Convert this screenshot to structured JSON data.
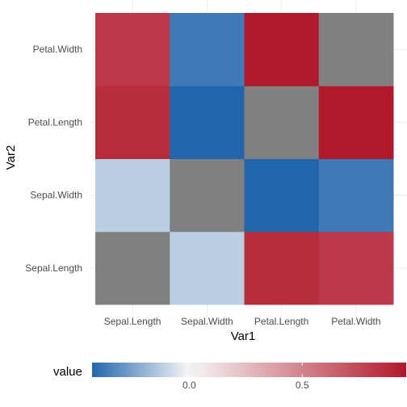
{
  "chart_data": {
    "type": "heatmap",
    "xlabel": "Var1",
    "ylabel": "Var2",
    "x_categories": [
      "Sepal.Length",
      "Sepal.Width",
      "Petal.Length",
      "Petal.Width"
    ],
    "y_categories": [
      "Sepal.Length",
      "Sepal.Width",
      "Petal.Length",
      "Petal.Width"
    ],
    "cells": [
      {
        "x": "Sepal.Length",
        "y": "Sepal.Length",
        "value": null
      },
      {
        "x": "Sepal.Width",
        "y": "Sepal.Length",
        "value": -0.12
      },
      {
        "x": "Petal.Length",
        "y": "Sepal.Length",
        "value": 0.87
      },
      {
        "x": "Petal.Width",
        "y": "Sepal.Length",
        "value": 0.82
      },
      {
        "x": "Sepal.Length",
        "y": "Sepal.Width",
        "value": -0.12
      },
      {
        "x": "Sepal.Width",
        "y": "Sepal.Width",
        "value": null
      },
      {
        "x": "Petal.Length",
        "y": "Sepal.Width",
        "value": -0.43
      },
      {
        "x": "Petal.Width",
        "y": "Sepal.Width",
        "value": -0.37
      },
      {
        "x": "Sepal.Length",
        "y": "Petal.Length",
        "value": 0.87
      },
      {
        "x": "Sepal.Width",
        "y": "Petal.Length",
        "value": -0.43
      },
      {
        "x": "Petal.Length",
        "y": "Petal.Length",
        "value": null
      },
      {
        "x": "Petal.Width",
        "y": "Petal.Length",
        "value": 0.96
      },
      {
        "x": "Sepal.Length",
        "y": "Petal.Width",
        "value": 0.82
      },
      {
        "x": "Sepal.Width",
        "y": "Petal.Width",
        "value": -0.37
      },
      {
        "x": "Petal.Length",
        "y": "Petal.Width",
        "value": 0.96
      },
      {
        "x": "Petal.Width",
        "y": "Petal.Width",
        "value": null
      }
    ],
    "na_color": "#808080",
    "legend": {
      "title": "value",
      "position": "bottom",
      "limits": [
        -0.43,
        0.96
      ],
      "breaks": [
        0.0,
        0.5
      ],
      "break_labels": [
        "0.0",
        "0.5"
      ],
      "low_color": "#2166ac",
      "mid_color": "#f7f7f7",
      "high_color": "#b2182b"
    },
    "grid": true
  }
}
